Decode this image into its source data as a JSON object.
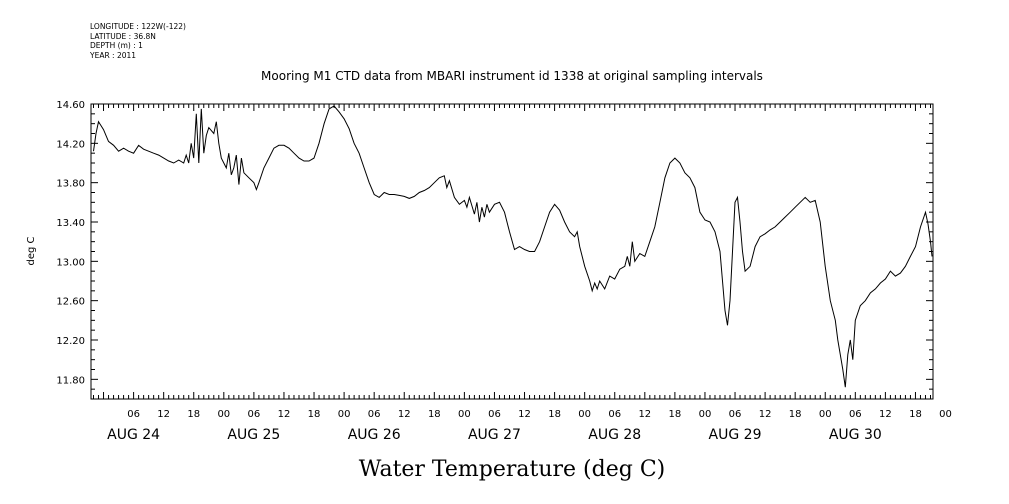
{
  "meta": {
    "longitude": "LONGITUDE : 122W(-122)",
    "latitude": "LATITUDE : 36.8N",
    "depth": "DEPTH (m) : 1",
    "year": "YEAR : 2011"
  },
  "chart_data": {
    "type": "line",
    "title": "Mooring M1 CTD data from MBARI instrument id 1338 at original sampling intervals",
    "xlabel": "Water Temperature (deg C)",
    "ylabel": "deg C",
    "x_unit": "hours since AUG 24 00:00",
    "xlim": [
      -2.5,
      165.5
    ],
    "ylim": [
      11.6,
      14.6
    ],
    "yticks": [
      "11.80",
      "12.20",
      "12.60",
      "13.00",
      "13.40",
      "13.80",
      "14.20",
      "14.60"
    ],
    "hour_ticks": [
      {
        "h": 6,
        "label": "06"
      },
      {
        "h": 12,
        "label": "12"
      },
      {
        "h": 18,
        "label": "18"
      },
      {
        "h": 24,
        "label": "00"
      },
      {
        "h": 30,
        "label": "06"
      },
      {
        "h": 36,
        "label": "12"
      },
      {
        "h": 42,
        "label": "18"
      },
      {
        "h": 48,
        "label": "00"
      },
      {
        "h": 54,
        "label": "06"
      },
      {
        "h": 60,
        "label": "12"
      },
      {
        "h": 66,
        "label": "18"
      },
      {
        "h": 72,
        "label": "00"
      },
      {
        "h": 78,
        "label": "06"
      },
      {
        "h": 84,
        "label": "12"
      },
      {
        "h": 90,
        "label": "18"
      },
      {
        "h": 96,
        "label": "00"
      },
      {
        "h": 102,
        "label": "06"
      },
      {
        "h": 108,
        "label": "12"
      },
      {
        "h": 114,
        "label": "18"
      },
      {
        "h": 120,
        "label": "00"
      },
      {
        "h": 126,
        "label": "06"
      },
      {
        "h": 132,
        "label": "12"
      },
      {
        "h": 138,
        "label": "18"
      },
      {
        "h": 144,
        "label": "00"
      },
      {
        "h": 150,
        "label": "06"
      },
      {
        "h": 156,
        "label": "12"
      },
      {
        "h": 162,
        "label": "18"
      },
      {
        "h": 168,
        "label": "00"
      }
    ],
    "day_labels": [
      {
        "h": 6,
        "label": "AUG 24"
      },
      {
        "h": 30,
        "label": "AUG 25"
      },
      {
        "h": 54,
        "label": "AUG 26"
      },
      {
        "h": 78,
        "label": "AUG 27"
      },
      {
        "h": 102,
        "label": "AUG 28"
      },
      {
        "h": 126,
        "label": "AUG 29"
      },
      {
        "h": 150,
        "label": "AUG 30"
      }
    ],
    "series": [
      {
        "color": "#000000",
        "points": [
          [
            -2,
            14.12
          ],
          [
            -1.5,
            14.3
          ],
          [
            -1,
            14.42
          ],
          [
            -0.5,
            14.38
          ],
          [
            0,
            14.34
          ],
          [
            1,
            14.22
          ],
          [
            2,
            14.18
          ],
          [
            3,
            14.12
          ],
          [
            4,
            14.15
          ],
          [
            5,
            14.12
          ],
          [
            6,
            14.1
          ],
          [
            7,
            14.18
          ],
          [
            8,
            14.14
          ],
          [
            9,
            14.12
          ],
          [
            10,
            14.1
          ],
          [
            11,
            14.08
          ],
          [
            12,
            14.05
          ],
          [
            13,
            14.02
          ],
          [
            14,
            14.0
          ],
          [
            15,
            14.03
          ],
          [
            16,
            14.0
          ],
          [
            16.5,
            14.08
          ],
          [
            17,
            14.0
          ],
          [
            17.5,
            14.2
          ],
          [
            18,
            14.05
          ],
          [
            18.5,
            14.5
          ],
          [
            19,
            14.0
          ],
          [
            19.5,
            14.55
          ],
          [
            20,
            14.1
          ],
          [
            20.5,
            14.28
          ],
          [
            21,
            14.36
          ],
          [
            22,
            14.3
          ],
          [
            22.5,
            14.42
          ],
          [
            23,
            14.2
          ],
          [
            23.5,
            14.05
          ],
          [
            24,
            14.0
          ],
          [
            24.5,
            13.95
          ],
          [
            25,
            14.1
          ],
          [
            25.5,
            13.88
          ],
          [
            26,
            13.95
          ],
          [
            26.5,
            14.08
          ],
          [
            27,
            13.78
          ],
          [
            27.5,
            14.05
          ],
          [
            28,
            13.9
          ],
          [
            29,
            13.85
          ],
          [
            30,
            13.8
          ],
          [
            30.5,
            13.73
          ],
          [
            31,
            13.8
          ],
          [
            32,
            13.95
          ],
          [
            33,
            14.05
          ],
          [
            34,
            14.15
          ],
          [
            35,
            14.18
          ],
          [
            36,
            14.18
          ],
          [
            37,
            14.15
          ],
          [
            38,
            14.1
          ],
          [
            39,
            14.05
          ],
          [
            40,
            14.02
          ],
          [
            41,
            14.02
          ],
          [
            42,
            14.05
          ],
          [
            43,
            14.2
          ],
          [
            44,
            14.4
          ],
          [
            45,
            14.55
          ],
          [
            46,
            14.58
          ],
          [
            47,
            14.52
          ],
          [
            48,
            14.45
          ],
          [
            49,
            14.35
          ],
          [
            50,
            14.2
          ],
          [
            51,
            14.1
          ],
          [
            52,
            13.95
          ],
          [
            53,
            13.8
          ],
          [
            54,
            13.68
          ],
          [
            55,
            13.65
          ],
          [
            56,
            13.7
          ],
          [
            57,
            13.68
          ],
          [
            58,
            13.68
          ],
          [
            59,
            13.67
          ],
          [
            60,
            13.66
          ],
          [
            61,
            13.64
          ],
          [
            62,
            13.66
          ],
          [
            63,
            13.7
          ],
          [
            64,
            13.72
          ],
          [
            65,
            13.75
          ],
          [
            66,
            13.8
          ],
          [
            67,
            13.85
          ],
          [
            68,
            13.87
          ],
          [
            68.5,
            13.75
          ],
          [
            69,
            13.82
          ],
          [
            70,
            13.65
          ],
          [
            71,
            13.58
          ],
          [
            72,
            13.62
          ],
          [
            72.5,
            13.55
          ],
          [
            73,
            13.65
          ],
          [
            74,
            13.48
          ],
          [
            74.5,
            13.6
          ],
          [
            75,
            13.4
          ],
          [
            75.5,
            13.55
          ],
          [
            76,
            13.45
          ],
          [
            76.5,
            13.58
          ],
          [
            77,
            13.5
          ],
          [
            78,
            13.58
          ],
          [
            79,
            13.6
          ],
          [
            80,
            13.5
          ],
          [
            81,
            13.3
          ],
          [
            82,
            13.12
          ],
          [
            83,
            13.15
          ],
          [
            84,
            13.12
          ],
          [
            85,
            13.1
          ],
          [
            86,
            13.1
          ],
          [
            87,
            13.2
          ],
          [
            88,
            13.35
          ],
          [
            89,
            13.5
          ],
          [
            90,
            13.58
          ],
          [
            91,
            13.52
          ],
          [
            92,
            13.4
          ],
          [
            93,
            13.3
          ],
          [
            94,
            13.25
          ],
          [
            94.5,
            13.3
          ],
          [
            95,
            13.15
          ],
          [
            96,
            12.95
          ],
          [
            97,
            12.8
          ],
          [
            97.5,
            12.7
          ],
          [
            98,
            12.78
          ],
          [
            98.5,
            12.72
          ],
          [
            99,
            12.8
          ],
          [
            100,
            12.72
          ],
          [
            101,
            12.85
          ],
          [
            102,
            12.82
          ],
          [
            103,
            12.92
          ],
          [
            104,
            12.95
          ],
          [
            104.5,
            13.05
          ],
          [
            105,
            12.95
          ],
          [
            105.5,
            13.2
          ],
          [
            106,
            13.0
          ],
          [
            107,
            13.08
          ],
          [
            108,
            13.05
          ],
          [
            109,
            13.2
          ],
          [
            110,
            13.35
          ],
          [
            111,
            13.6
          ],
          [
            112,
            13.85
          ],
          [
            113,
            14.0
          ],
          [
            114,
            14.05
          ],
          [
            115,
            14.0
          ],
          [
            116,
            13.9
          ],
          [
            117,
            13.85
          ],
          [
            118,
            13.75
          ],
          [
            119,
            13.5
          ],
          [
            120,
            13.42
          ],
          [
            121,
            13.4
          ],
          [
            122,
            13.3
          ],
          [
            123,
            13.1
          ],
          [
            123.5,
            12.8
          ],
          [
            124,
            12.5
          ],
          [
            124.5,
            12.35
          ],
          [
            125,
            12.6
          ],
          [
            125.5,
            13.1
          ],
          [
            126,
            13.6
          ],
          [
            126.5,
            13.65
          ],
          [
            127,
            13.4
          ],
          [
            127.5,
            13.1
          ],
          [
            128,
            12.9
          ],
          [
            129,
            12.95
          ],
          [
            130,
            13.15
          ],
          [
            131,
            13.25
          ],
          [
            132,
            13.28
          ],
          [
            133,
            13.32
          ],
          [
            134,
            13.35
          ],
          [
            135,
            13.4
          ],
          [
            136,
            13.45
          ],
          [
            137,
            13.5
          ],
          [
            138,
            13.55
          ],
          [
            139,
            13.6
          ],
          [
            140,
            13.65
          ],
          [
            141,
            13.6
          ],
          [
            142,
            13.62
          ],
          [
            143,
            13.4
          ],
          [
            144,
            12.95
          ],
          [
            145,
            12.6
          ],
          [
            146,
            12.4
          ],
          [
            146.5,
            12.2
          ],
          [
            147,
            12.05
          ],
          [
            147.5,
            11.9
          ],
          [
            148,
            11.72
          ],
          [
            148.5,
            12.05
          ],
          [
            149,
            12.2
          ],
          [
            149.5,
            12.0
          ],
          [
            150,
            12.4
          ],
          [
            151,
            12.55
          ],
          [
            152,
            12.6
          ],
          [
            153,
            12.68
          ],
          [
            154,
            12.72
          ],
          [
            155,
            12.78
          ],
          [
            156,
            12.82
          ],
          [
            157,
            12.9
          ],
          [
            158,
            12.85
          ],
          [
            159,
            12.88
          ],
          [
            160,
            12.95
          ],
          [
            161,
            13.05
          ],
          [
            162,
            13.15
          ],
          [
            163,
            13.35
          ],
          [
            164,
            13.5
          ],
          [
            164.5,
            13.38
          ],
          [
            165,
            13.2
          ],
          [
            165.3,
            13.05
          ]
        ]
      }
    ]
  }
}
